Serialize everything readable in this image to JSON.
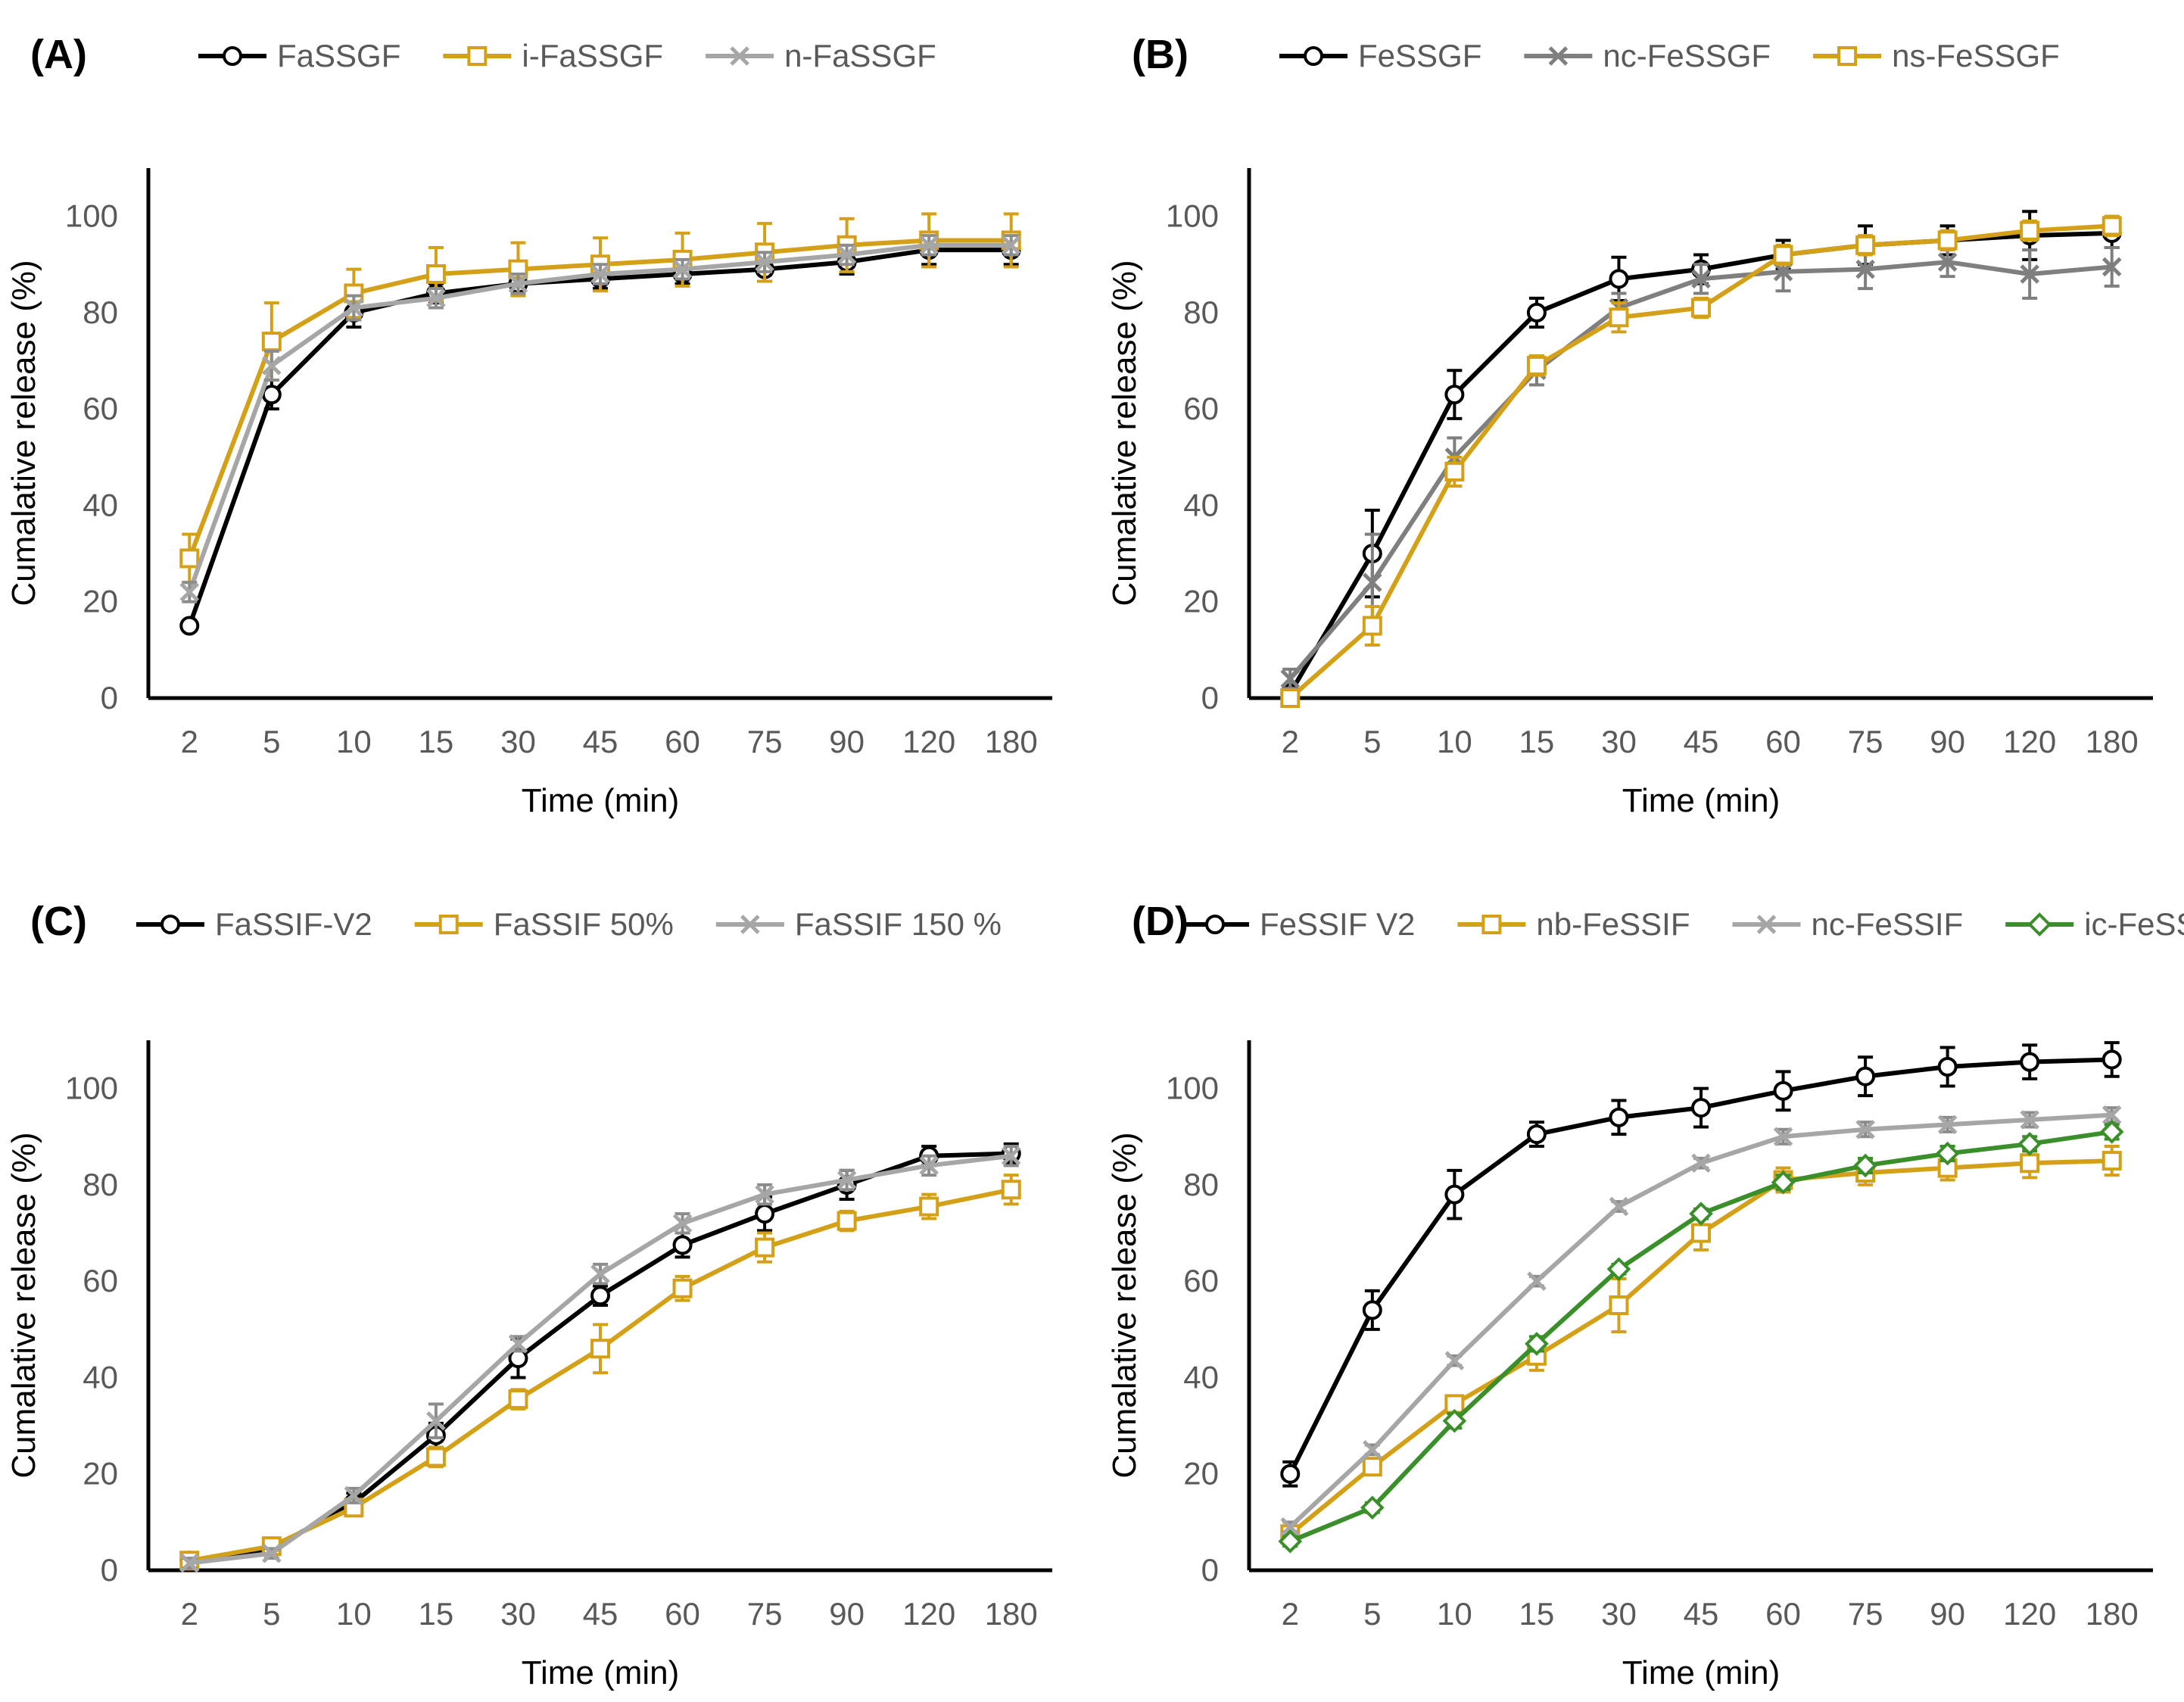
{
  "chart_data": [
    {
      "panel": "(A)",
      "type": "line",
      "xlabel": "Time (min)",
      "ylabel": "Cumalative release (%)",
      "ylim": [
        0,
        110
      ],
      "yticks": [
        "0",
        "20",
        "40",
        "60",
        "80",
        "100"
      ],
      "categories": [
        "2",
        "5",
        "10",
        "15",
        "30",
        "45",
        "60",
        "75",
        "90",
        "120",
        "180"
      ],
      "series": [
        {
          "name": "FaSSGF",
          "color": "#000000",
          "marker": "circle",
          "values": [
            15,
            63,
            80,
            84,
            86,
            87,
            88,
            89,
            90.5,
            93,
            93
          ],
          "errors": [
            1,
            3,
            3,
            2,
            2,
            2,
            2,
            2.5,
            2.5,
            3,
            3
          ]
        },
        {
          "name": "i-FaSSGF",
          "color": "#D4A017",
          "marker": "square",
          "values": [
            29,
            74,
            84,
            88,
            89,
            90,
            91,
            92.5,
            94,
            95,
            95
          ],
          "errors": [
            5,
            8,
            5,
            5.5,
            5.5,
            5.5,
            5.5,
            6,
            5.5,
            5.5,
            5.5
          ]
        },
        {
          "name": "n-FaSSGF",
          "color": "#A6A6A6",
          "marker": "x",
          "values": [
            22,
            69,
            81,
            83,
            86,
            88,
            89,
            90.5,
            92,
            94,
            94
          ],
          "errors": [
            2,
            3,
            2.5,
            2,
            2,
            2,
            2,
            2,
            2,
            2,
            2
          ]
        }
      ]
    },
    {
      "panel": "(B)",
      "type": "line",
      "xlabel": "Time (min)",
      "ylabel": "Cumalative release (%)",
      "ylim": [
        0,
        110
      ],
      "yticks": [
        "0",
        "20",
        "40",
        "60",
        "80",
        "100"
      ],
      "categories": [
        "2",
        "5",
        "10",
        "15",
        "30",
        "45",
        "60",
        "75",
        "90",
        "120",
        "180"
      ],
      "series": [
        {
          "name": "FeSSGF",
          "color": "#000000",
          "marker": "circle",
          "values": [
            1,
            30,
            63,
            80,
            87,
            89,
            92,
            94,
            95,
            96,
            96.5
          ],
          "errors": [
            1,
            9,
            5,
            3,
            4.5,
            3,
            3,
            4,
            3,
            5,
            3
          ]
        },
        {
          "name": "nc-FeSSGF",
          "color": "#7F7F7F",
          "marker": "x",
          "values": [
            4,
            24,
            50,
            68,
            81,
            87,
            88.5,
            89,
            90.5,
            88,
            89.5
          ],
          "errors": [
            2,
            10,
            4,
            3,
            3,
            3,
            4,
            4,
            3,
            5,
            4
          ]
        },
        {
          "name": "ns-FeSSGF",
          "color": "#D4A017",
          "marker": "square",
          "values": [
            0,
            15,
            47,
            69,
            79,
            81,
            92,
            94,
            95,
            97,
            98
          ],
          "errors": [
            1,
            4,
            3,
            2,
            3,
            2,
            2,
            2,
            2,
            2,
            2
          ]
        }
      ]
    },
    {
      "panel": "(C)",
      "type": "line",
      "xlabel": "Time (min)",
      "ylabel": "Cumalative release (%)",
      "ylim": [
        0,
        110
      ],
      "yticks": [
        "0",
        "20",
        "40",
        "60",
        "80",
        "100"
      ],
      "categories": [
        "2",
        "5",
        "10",
        "15",
        "30",
        "45",
        "60",
        "75",
        "90",
        "120",
        "180"
      ],
      "series": [
        {
          "name": "FaSSIF-V2",
          "color": "#000000",
          "marker": "circle",
          "values": [
            2,
            4.5,
            14,
            28,
            44,
            57,
            67.5,
            74,
            80,
            86,
            86.5
          ],
          "errors": [
            1,
            1,
            2,
            2.5,
            4,
            2,
            2.5,
            3.5,
            3,
            2,
            2
          ]
        },
        {
          "name": "FaSSIF 50%",
          "color": "#D4A017",
          "marker": "square",
          "values": [
            2,
            5,
            13,
            23.5,
            35.5,
            46,
            58.5,
            67,
            72.5,
            75.5,
            79
          ],
          "errors": [
            1,
            1,
            1.5,
            2,
            2,
            5,
            2.5,
            3,
            2,
            2.5,
            3
          ]
        },
        {
          "name": "FaSSIF 150 %",
          "color": "#A6A6A6",
          "marker": "x",
          "values": [
            1.5,
            3.5,
            15.5,
            31,
            47,
            61.5,
            72,
            78,
            81,
            84,
            86
          ],
          "errors": [
            1,
            1,
            1.5,
            3.5,
            1.5,
            2,
            2,
            2,
            2,
            2,
            2
          ]
        }
      ]
    },
    {
      "panel": "(D)",
      "type": "line",
      "xlabel": "Time (min)",
      "ylabel": "Cumalative release (%)",
      "ylim": [
        0,
        110
      ],
      "yticks": [
        "0",
        "20",
        "40",
        "60",
        "80",
        "100"
      ],
      "categories": [
        "2",
        "5",
        "10",
        "15",
        "30",
        "45",
        "60",
        "75",
        "90",
        "120",
        "180"
      ],
      "series": [
        {
          "name": "FeSSIF V2",
          "color": "#000000",
          "marker": "circle",
          "values": [
            20,
            54,
            78,
            90.5,
            94,
            96,
            99.5,
            102.5,
            104.5,
            105.5,
            106
          ],
          "errors": [
            2.5,
            4,
            5,
            2.5,
            3.5,
            4,
            4,
            4,
            4,
            3.5,
            3.5
          ]
        },
        {
          "name": "nb-FeSSIF",
          "color": "#D4A017",
          "marker": "square",
          "values": [
            7.5,
            21.5,
            34.5,
            44.5,
            55,
            70,
            81,
            82.5,
            83.5,
            84.5,
            85
          ],
          "errors": [
            1,
            1.5,
            1.5,
            3,
            5.5,
            3.5,
            2.5,
            2.5,
            2.5,
            3,
            3
          ]
        },
        {
          "name": "nc-FeSSIF",
          "color": "#A6A6A6",
          "marker": "x",
          "values": [
            9,
            25,
            43.5,
            60,
            75.5,
            84.5,
            90,
            91.5,
            92.5,
            93.5,
            94.5
          ],
          "errors": [
            1,
            1,
            1,
            1,
            1,
            1,
            1.5,
            1.5,
            1.5,
            1.5,
            1.5
          ]
        },
        {
          "name": "ic-FeSSIF",
          "color": "#3A8F2A",
          "marker": "diamond",
          "values": [
            6,
            13,
            31,
            47,
            62.5,
            74,
            80.5,
            84,
            86.5,
            88.5,
            91
          ],
          "errors": [
            1,
            1,
            1.5,
            1.5,
            1,
            1,
            1.5,
            1.5,
            1.5,
            1.5,
            1.5
          ]
        }
      ]
    }
  ]
}
